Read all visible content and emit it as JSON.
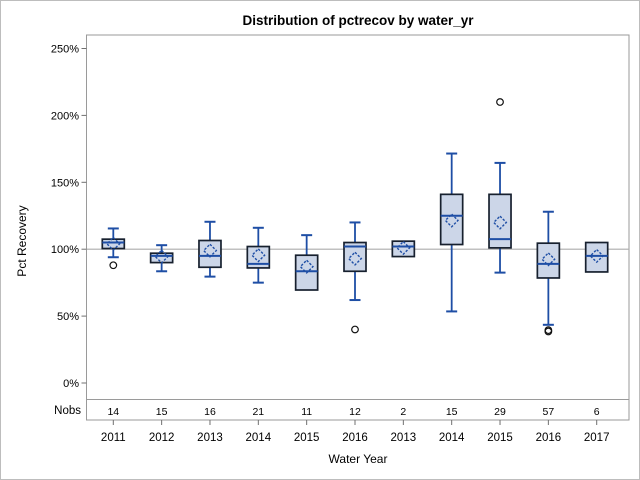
{
  "chart_data": {
    "type": "boxplot",
    "title": "Distribution of pctrecov by water_yr",
    "xlabel": "Water Year",
    "ylabel": "Pct Recovery",
    "stat_row_label": "Nobs",
    "y_axis": {
      "tick_values": [
        0,
        50,
        100,
        150,
        200,
        250
      ],
      "tick_labels": [
        "0%",
        "50%",
        "100%",
        "150%",
        "200%",
        "250%"
      ],
      "unit": "percent"
    },
    "reference_line": 100,
    "categories": [
      "2011",
      "2012",
      "2013",
      "2014",
      "2015",
      "2016",
      "2013",
      "2014",
      "2015",
      "2016",
      "2017"
    ],
    "nobs": [
      14,
      15,
      16,
      21,
      11,
      12,
      2,
      15,
      29,
      57,
      6
    ],
    "boxes": [
      {
        "year": "2011",
        "nobs": 14,
        "whisker_low": 94,
        "q1": 100.5,
        "median": 105,
        "q3": 107.5,
        "whisker_high": 115.5,
        "mean": 104,
        "outliers": [
          88
        ]
      },
      {
        "year": "2012",
        "nobs": 15,
        "whisker_low": 83.5,
        "q1": 90,
        "median": 95,
        "q3": 97,
        "whisker_high": 103,
        "mean": 94.5,
        "outliers": []
      },
      {
        "year": "2013",
        "nobs": 16,
        "whisker_low": 79.5,
        "q1": 86.5,
        "median": 95,
        "q3": 106.5,
        "whisker_high": 120.5,
        "mean": 99,
        "outliers": []
      },
      {
        "year": "2014",
        "nobs": 21,
        "whisker_low": 75,
        "q1": 86,
        "median": 89,
        "q3": 102,
        "whisker_high": 116,
        "mean": 95.5,
        "outliers": []
      },
      {
        "year": "2015",
        "nobs": 11,
        "whisker_low": 69.5,
        "q1": 69.5,
        "median": 83.5,
        "q3": 95.5,
        "whisker_high": 110.5,
        "mean": 87,
        "outliers": []
      },
      {
        "year": "2016",
        "nobs": 12,
        "whisker_low": 62,
        "q1": 83.5,
        "median": 102,
        "q3": 105,
        "whisker_high": 120,
        "mean": 93,
        "outliers": [
          40
        ]
      },
      {
        "year": "2013",
        "nobs": 2,
        "whisker_low": 94.5,
        "q1": 94.5,
        "median": 102,
        "q3": 106,
        "whisker_high": 106,
        "mean": 101,
        "outliers": []
      },
      {
        "year": "2014",
        "nobs": 15,
        "whisker_low": 53.5,
        "q1": 103.5,
        "median": 125,
        "q3": 141,
        "whisker_high": 171.5,
        "mean": 121.5,
        "outliers": []
      },
      {
        "year": "2015",
        "nobs": 29,
        "whisker_low": 82.5,
        "q1": 101,
        "median": 107.5,
        "q3": 141,
        "whisker_high": 164.5,
        "mean": 120,
        "outliers": [
          210
        ]
      },
      {
        "year": "2016",
        "nobs": 57,
        "whisker_low": 43.5,
        "q1": 78.5,
        "median": 89,
        "q3": 104.5,
        "whisker_high": 128,
        "mean": 92.5,
        "outliers": [
          39.5,
          38.5
        ]
      },
      {
        "year": "2017",
        "nobs": 6,
        "whisker_low": 83,
        "q1": 83,
        "median": 95,
        "q3": 105,
        "whisker_high": 105,
        "mean": 95,
        "outliers": []
      }
    ],
    "colors": {
      "box_fill": "#ccd6e8",
      "box_border": "#17202e",
      "whisker_blue": "#1e4ea5",
      "frame_gray": "#9a9a9a",
      "ref_line_gray": "#ababab",
      "tick_gray": "#707070",
      "outlier_black": "#111111",
      "text_black": "#000000"
    },
    "legend_position": "none",
    "grid": "off"
  }
}
